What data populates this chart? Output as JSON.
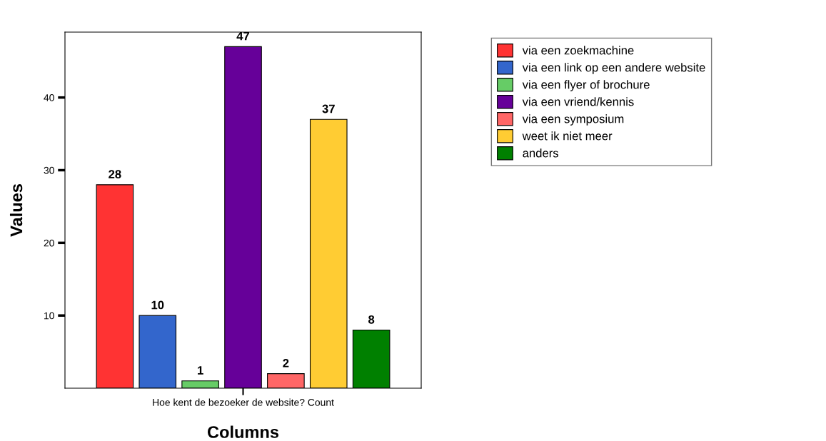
{
  "chart_data": {
    "type": "bar",
    "xlabel": "Columns",
    "ylabel": "Values",
    "categories": [
      "Hoe kent de bezoeker de website? Count"
    ],
    "series": [
      {
        "name": "via een zoekmachine",
        "color": "#ff3333",
        "values": [
          28
        ]
      },
      {
        "name": "via een link op een andere website",
        "color": "#3366cc",
        "values": [
          10
        ]
      },
      {
        "name": "via een flyer of brochure",
        "color": "#66cc66",
        "values": [
          1
        ]
      },
      {
        "name": "via een vriend/kennis",
        "color": "#660099",
        "values": [
          47
        ]
      },
      {
        "name": "via een symposium",
        "color": "#ff6666",
        "values": [
          2
        ]
      },
      {
        "name": "weet ik niet meer",
        "color": "#ffcc33",
        "values": [
          37
        ]
      },
      {
        "name": "anders",
        "color": "#008000",
        "values": [
          8
        ]
      }
    ],
    "ylim": [
      0,
      49
    ],
    "yticks": [
      10,
      20,
      30,
      40
    ],
    "grid": false,
    "legend": "top right",
    "data_labels": true
  }
}
